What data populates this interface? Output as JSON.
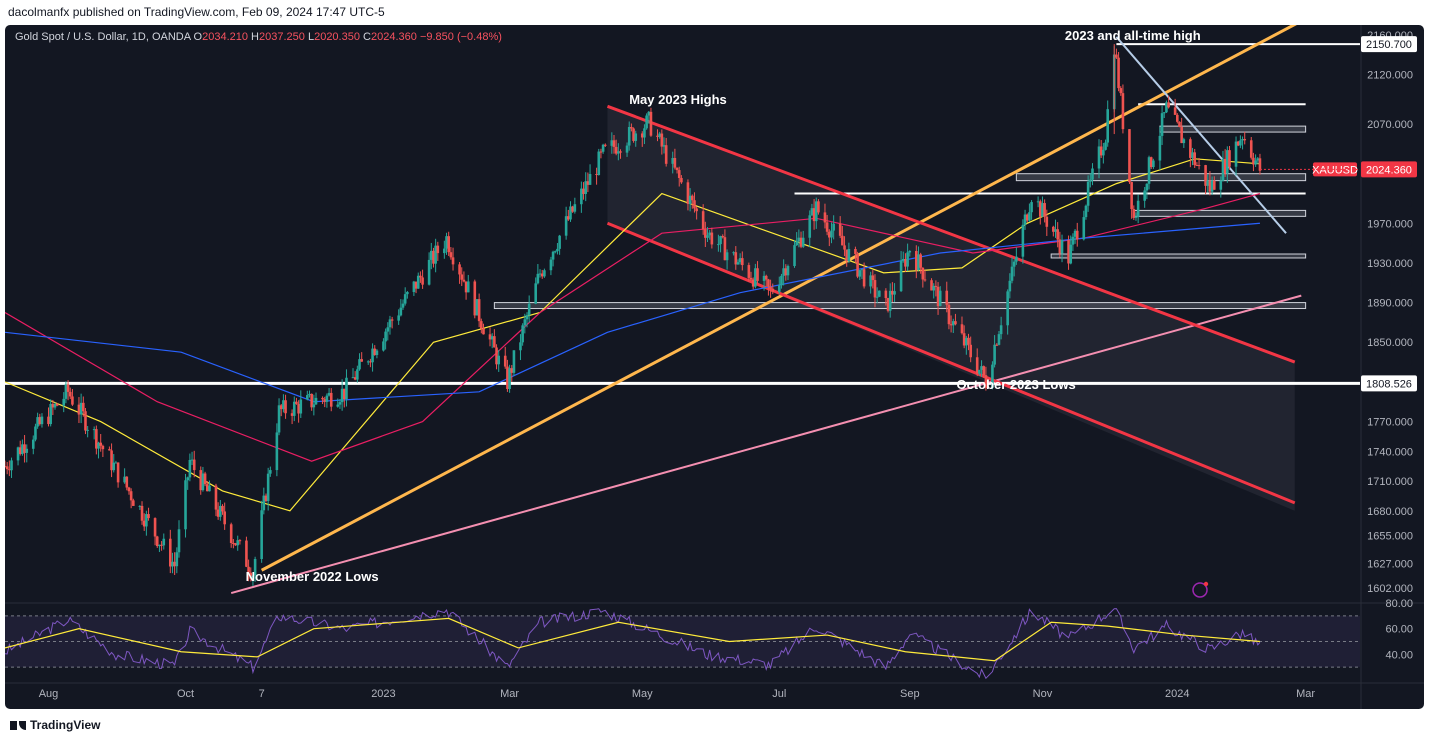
{
  "header": {
    "publisher_line": "dacolmanfx published on TradingView.com, Feb 09, 2024 17:47 UTC-5"
  },
  "legend": {
    "symbol": "Gold Spot / U.S. Dollar, 1D, OANDA",
    "open_label": "O",
    "open": "2034.210",
    "high_label": "H",
    "high": "2037.250",
    "low_label": "L",
    "low": "2020.350",
    "close_label": "C",
    "close": "2024.360",
    "change": "−9.850 (−0.48%)"
  },
  "footer": {
    "brand": "TradingView"
  },
  "colors": {
    "bull": "#26a69a",
    "bear": "#ef5350",
    "channel": "#f23645",
    "trend_up": "#ffb74d",
    "trend_pink": "#f48fb1",
    "ma_fast": "#ffeb3b",
    "ma_mid": "#e91e63",
    "ma_slow": "#2962ff",
    "rsi": "#7e57c2",
    "downtrend": "#b6cde8"
  },
  "chart_data": {
    "type": "candlestick",
    "instrument": "XAUUSD",
    "ylim": [
      1590,
      2170
    ],
    "y_ticks": [
      "1602.000",
      "1627.000",
      "1655.000",
      "1680.000",
      "1710.000",
      "1740.000",
      "1770.000",
      "1850.000",
      "1890.000",
      "1930.000",
      "1970.000",
      "2070.000",
      "2120.000",
      "2160.000"
    ],
    "x_ticks": [
      {
        "label": "Aug",
        "date": "2022-08-01"
      },
      {
        "label": "Oct",
        "date": "2022-10-03"
      },
      {
        "label": "7",
        "date": "2022-11-07"
      },
      {
        "label": "2023",
        "date": "2023-01-02"
      },
      {
        "label": "Mar",
        "date": "2023-03-01"
      },
      {
        "label": "May",
        "date": "2023-05-01"
      },
      {
        "label": "Jul",
        "date": "2023-07-03"
      },
      {
        "label": "Sep",
        "date": "2023-09-01"
      },
      {
        "label": "Nov",
        "date": "2023-11-01"
      },
      {
        "label": "2024",
        "date": "2024-01-02"
      },
      {
        "label": "Mar",
        "date": "2024-03-01"
      }
    ],
    "x_range": [
      "2022-07-12",
      "2024-03-26"
    ],
    "price_tags": [
      {
        "text": "2150.700",
        "value": 2150.7,
        "style": "white"
      },
      {
        "text": "XAUUSD",
        "value": 2024.36,
        "style": "red"
      },
      {
        "text": "2024.360",
        "value": 2024.36,
        "style": "red"
      },
      {
        "text": "1808.526",
        "value": 1808.526,
        "style": "white"
      }
    ],
    "key_points": [
      {
        "date": "2022-07-12",
        "price": 1725
      },
      {
        "date": "2022-08-10",
        "price": 1800
      },
      {
        "date": "2022-09-28",
        "price": 1625
      },
      {
        "date": "2022-10-05",
        "price": 1730
      },
      {
        "date": "2022-11-03",
        "price": 1618
      },
      {
        "date": "2022-11-15",
        "price": 1780
      },
      {
        "date": "2022-12-15",
        "price": 1800
      },
      {
        "date": "2023-01-31",
        "price": 1955
      },
      {
        "date": "2023-02-28",
        "price": 1810
      },
      {
        "date": "2023-03-15",
        "price": 1920
      },
      {
        "date": "2023-04-13",
        "price": 2040
      },
      {
        "date": "2023-05-04",
        "price": 2072
      },
      {
        "date": "2023-05-31",
        "price": 1960
      },
      {
        "date": "2023-06-29",
        "price": 1900
      },
      {
        "date": "2023-07-20",
        "price": 1985
      },
      {
        "date": "2023-08-21",
        "price": 1885
      },
      {
        "date": "2023-09-01",
        "price": 1945
      },
      {
        "date": "2023-10-06",
        "price": 1811
      },
      {
        "date": "2023-10-27",
        "price": 2000
      },
      {
        "date": "2023-11-13",
        "price": 1935
      },
      {
        "date": "2023-11-30",
        "price": 2060
      },
      {
        "date": "2023-12-04",
        "price": 2150.7
      },
      {
        "date": "2023-12-13",
        "price": 1975
      },
      {
        "date": "2023-12-28",
        "price": 2085
      },
      {
        "date": "2024-01-17",
        "price": 2005
      },
      {
        "date": "2024-02-01",
        "price": 2060
      },
      {
        "date": "2024-02-09",
        "price": 2024.36
      }
    ],
    "moving_averages": [
      {
        "color": "yellow",
        "points": [
          [
            "2022-07-12",
            1810
          ],
          [
            "2022-08-25",
            1770
          ],
          [
            "2022-10-20",
            1700
          ],
          [
            "2022-11-20",
            1680
          ],
          [
            "2023-01-25",
            1850
          ],
          [
            "2023-03-15",
            1880
          ],
          [
            "2023-05-10",
            2000
          ],
          [
            "2023-06-30",
            1960
          ],
          [
            "2023-08-20",
            1920
          ],
          [
            "2023-09-25",
            1925
          ],
          [
            "2023-10-25",
            1970
          ],
          [
            "2023-12-05",
            2010
          ],
          [
            "2024-01-10",
            2035
          ],
          [
            "2024-02-09",
            2030
          ]
        ]
      },
      {
        "color": "crimson",
        "points": [
          [
            "2022-07-12",
            1880
          ],
          [
            "2022-09-20",
            1790
          ],
          [
            "2022-11-30",
            1730
          ],
          [
            "2023-01-20",
            1770
          ],
          [
            "2023-03-15",
            1880
          ],
          [
            "2023-05-10",
            1960
          ],
          [
            "2023-07-20",
            1975
          ],
          [
            "2023-09-30",
            1940
          ],
          [
            "2023-11-20",
            1955
          ],
          [
            "2024-01-15",
            1985
          ],
          [
            "2024-02-09",
            2000
          ]
        ]
      },
      {
        "color": "blue",
        "points": [
          [
            "2022-07-12",
            1860
          ],
          [
            "2022-10-01",
            1840
          ],
          [
            "2022-12-01",
            1790
          ],
          [
            "2023-02-15",
            1800
          ],
          [
            "2023-04-15",
            1860
          ],
          [
            "2023-06-15",
            1900
          ],
          [
            "2023-09-15",
            1940
          ],
          [
            "2023-11-20",
            1955
          ],
          [
            "2024-02-09",
            1970
          ]
        ]
      }
    ],
    "horizontal_levels": [
      2150.7,
      2090,
      2065,
      2017,
      2000,
      1980,
      1937,
      1887,
      1808.526
    ],
    "annotations": [
      "2023 and all-time high",
      "May 2023 Highs",
      "November 2022 Lows",
      "October 2023 Lows"
    ],
    "rsi": {
      "ylim": [
        20,
        80
      ],
      "ticks": [
        "80.00",
        "60.00",
        "40.00"
      ],
      "points": [
        [
          "2022-07-12",
          42
        ],
        [
          "2022-08-10",
          67
        ],
        [
          "2022-09-01",
          40
        ],
        [
          "2022-09-28",
          31
        ],
        [
          "2022-10-05",
          58
        ],
        [
          "2022-11-03",
          30
        ],
        [
          "2022-11-15",
          70
        ],
        [
          "2022-12-15",
          60
        ],
        [
          "2023-01-31",
          75
        ],
        [
          "2023-02-28",
          30
        ],
        [
          "2023-03-15",
          65
        ],
        [
          "2023-04-13",
          74
        ],
        [
          "2023-05-31",
          40
        ],
        [
          "2023-06-29",
          32
        ],
        [
          "2023-07-20",
          62
        ],
        [
          "2023-08-21",
          30
        ],
        [
          "2023-09-01",
          56
        ],
        [
          "2023-10-06",
          22
        ],
        [
          "2023-10-27",
          74
        ],
        [
          "2023-11-13",
          52
        ],
        [
          "2023-12-04",
          76
        ],
        [
          "2023-12-13",
          45
        ],
        [
          "2023-12-28",
          62
        ],
        [
          "2024-01-17",
          44
        ],
        [
          "2024-02-01",
          57
        ],
        [
          "2024-02-09",
          47
        ]
      ],
      "ma_points": [
        [
          "2022-07-12",
          45
        ],
        [
          "2022-08-15",
          60
        ],
        [
          "2022-10-01",
          42
        ],
        [
          "2022-11-05",
          38
        ],
        [
          "2022-12-01",
          60
        ],
        [
          "2023-02-01",
          68
        ],
        [
          "2023-03-05",
          45
        ],
        [
          "2023-04-20",
          65
        ],
        [
          "2023-06-10",
          50
        ],
        [
          "2023-07-25",
          55
        ],
        [
          "2023-08-30",
          42
        ],
        [
          "2023-10-10",
          35
        ],
        [
          "2023-11-05",
          65
        ],
        [
          "2023-12-01",
          62
        ],
        [
          "2024-01-05",
          55
        ],
        [
          "2024-02-09",
          50
        ]
      ]
    }
  }
}
